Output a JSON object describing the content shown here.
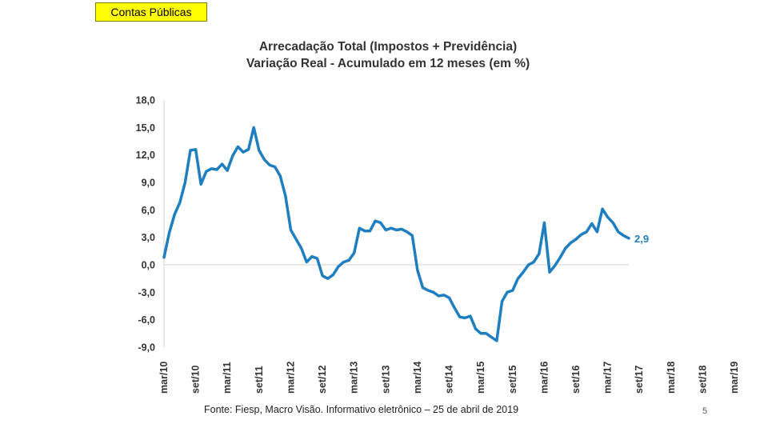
{
  "header": {
    "badge": "Contas Públicas"
  },
  "footer": {
    "source": "Fonte: Fiesp, Macro Visão. Informativo eletrônico – 25 de abril de 2019",
    "page_number": "5"
  },
  "chart_data": {
    "type": "line",
    "title": "Arrecadação Total (Impostos + Previdência)",
    "subtitle": "Variação Real - Acumulado em 12 meses (em %)",
    "xlabel": "",
    "ylabel": "",
    "ylim": [
      -9,
      18
    ],
    "y_ticks": [
      "18,0",
      "15,0",
      "12,0",
      "9,0",
      "6,0",
      "3,0",
      "0,0",
      "-3,0",
      "-6,0",
      "-9,0"
    ],
    "x_tick_labels": [
      "mar/10",
      "set/10",
      "mar/11",
      "set/11",
      "mar/12",
      "set/12",
      "mar/13",
      "set/13",
      "mar/14",
      "set/14",
      "mar/15",
      "set/15",
      "mar/16",
      "set/16",
      "mar/17",
      "set/17",
      "mar/18",
      "set/18",
      "mar/19"
    ],
    "grid": false,
    "legend": "none",
    "line_color": "#1f7ec0",
    "end_label": "2,9",
    "series": [
      {
        "x_start": "mar/10",
        "frequency": "monthly",
        "values": [
          0.8,
          3.5,
          5.5,
          6.8,
          9.0,
          12.5,
          12.6,
          8.8,
          10.2,
          10.5,
          10.4,
          11.0,
          10.3,
          11.9,
          12.9,
          12.3,
          12.6,
          15.0,
          12.5,
          11.5,
          10.9,
          10.7,
          9.7,
          7.5,
          3.8,
          2.8,
          1.8,
          0.3,
          0.9,
          0.7,
          -1.2,
          -1.5,
          -1.1,
          -0.2,
          0.3,
          0.5,
          1.3,
          4.0,
          3.7,
          3.7,
          4.8,
          4.6,
          3.8,
          4.0,
          3.8,
          3.9,
          3.6,
          3.2,
          -0.6,
          -2.5,
          -2.8,
          -3.0,
          -3.4,
          -3.3,
          -3.6,
          -4.7,
          -5.7,
          -5.8,
          -5.6,
          -7.0,
          -7.5,
          -7.5,
          -7.9,
          -8.3,
          -4.0,
          -3.0,
          -2.8,
          -1.5,
          -0.8,
          0.0,
          0.3,
          1.2,
          4.6,
          -0.8,
          -0.1,
          0.8,
          1.8,
          2.4,
          2.8,
          3.3,
          3.6,
          4.5,
          3.6,
          6.1,
          5.2,
          4.6,
          3.6,
          3.2,
          2.9
        ]
      }
    ]
  }
}
